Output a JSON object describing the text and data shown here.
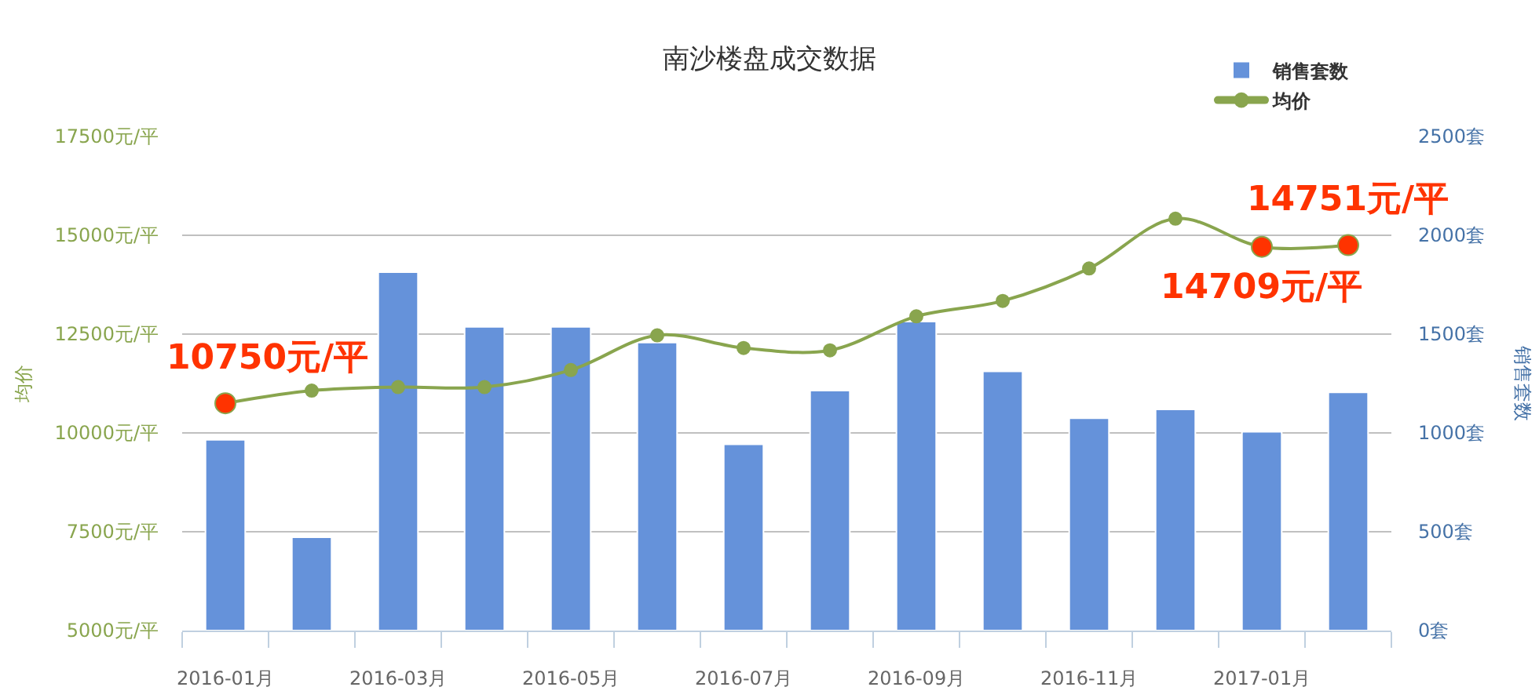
{
  "chart_data": {
    "type": "bar",
    "title": "南沙楼盘成交数据",
    "ylabel": "均价",
    "y2label": "销售套数",
    "categories": [
      "2016-01月",
      null,
      "2016-03月",
      null,
      "2016-05月",
      null,
      "2016-07月",
      null,
      "2016-09月",
      null,
      "2016-11月",
      null,
      "2017-01月",
      null
    ],
    "series": [
      {
        "name": "销售套数",
        "axis": "y2",
        "color": "#6592da",
        "values": [
          965,
          472,
          1814,
          1537,
          1537,
          1457,
          942,
          1214,
          1563,
          1312,
          1074,
          1119,
          1006,
          1205
        ]
      },
      {
        "name": "均价",
        "type": "line",
        "color": "#89a54e",
        "colors": [
          "#ff3300",
          "#89a54e",
          "#89a54e",
          "#89a54e",
          "#89a54e",
          "#89a54e",
          "#89a54e",
          "#89a54e",
          "#89a54e",
          "#89a54e",
          "#89a54e",
          "#89a54e",
          "#ff3300",
          "#ff3300"
        ],
        "values": [
          10750,
          11070,
          11160,
          11160,
          11590,
          12470,
          12150,
          12090,
          12950,
          13340,
          14160,
          15420,
          14709,
          14751
        ]
      }
    ],
    "ylim": [
      5000,
      17500
    ],
    "yticks": [
      {
        "value": 5000,
        "label": "5000元/平"
      },
      {
        "value": 7500,
        "label": "7500元/平"
      },
      {
        "value": 10000,
        "label": "10000元/平"
      },
      {
        "value": 12500,
        "label": "12500元/平"
      },
      {
        "value": 15000,
        "label": "15000元/平"
      },
      {
        "value": 17500,
        "label": "17500元/平"
      }
    ],
    "y2lim": [
      0,
      2500
    ],
    "y2ticks": [
      {
        "value": 0,
        "label": "0套"
      },
      {
        "value": 500,
        "label": "500套"
      },
      {
        "value": 1000,
        "label": "1000套"
      },
      {
        "value": 1500,
        "label": "1500套"
      },
      {
        "value": 2000,
        "label": "2000套"
      },
      {
        "value": 2500,
        "label": "2500套"
      }
    ],
    "grid": "y",
    "legend": "top right",
    "marker": "circle",
    "line_style": "solid",
    "annotations": [
      {
        "text": "10750元/平",
        "x": "2016-01月",
        "y": 10750
      },
      {
        "text": "14709元/平",
        "x": "2017-01月",
        "y": 14709
      },
      {
        "text": "14751元/平",
        "y": 14751
      }
    ]
  }
}
